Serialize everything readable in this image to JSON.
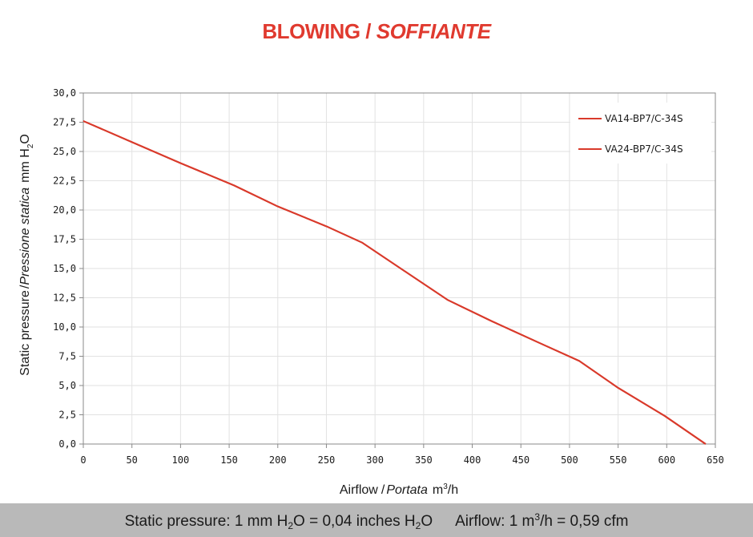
{
  "chart_data": {
    "type": "line",
    "title_part1": "BLOWING",
    "title_sep": " / ",
    "title_part2": "SOFFIANTE",
    "xlabel_main": "Airflow",
    "xlabel_it": "Portata",
    "xlabel_unit_a": "m",
    "xlabel_unit_sup": "3",
    "xlabel_unit_b": "/h",
    "ylabel_main": "Static pressure",
    "ylabel_it": "Pressione statica",
    "ylabel_unit_a": "mm  H",
    "ylabel_unit_sub": "2",
    "ylabel_unit_b": "O",
    "xlim": [
      0,
      650
    ],
    "ylim": [
      0,
      30
    ],
    "x_ticks": [
      0,
      50,
      100,
      150,
      200,
      250,
      300,
      350,
      400,
      450,
      500,
      550,
      600,
      650
    ],
    "y_ticks": [
      "0,0",
      "2,5",
      "5,0",
      "7,5",
      "10,0",
      "12,5",
      "15,0",
      "17,5",
      "20,0",
      "22,5",
      "25,0",
      "27,5",
      "30,0"
    ],
    "grid": true,
    "legend_position": "top-right",
    "series": [
      {
        "name": "VA14-BP7/C-34S",
        "color": "#d93a2b",
        "x": [
          0,
          50,
          100,
          155,
          200,
          250,
          287,
          330,
          375,
          420,
          470,
          510,
          550,
          598,
          640
        ],
        "y": [
          27.6,
          25.8,
          24.0,
          22.1,
          20.3,
          18.6,
          17.2,
          14.8,
          12.3,
          10.5,
          8.6,
          7.1,
          4.8,
          2.4,
          0.0
        ]
      },
      {
        "name": "VA24-BP7/C-34S",
        "color": "#d93a2b",
        "x": [
          0,
          50,
          100,
          155,
          200,
          250,
          287,
          330,
          375,
          420,
          470,
          510,
          550,
          598,
          640
        ],
        "y": [
          27.6,
          25.8,
          24.0,
          22.1,
          20.3,
          18.6,
          17.2,
          14.8,
          12.3,
          10.5,
          8.6,
          7.1,
          4.8,
          2.4,
          0.0
        ]
      }
    ]
  },
  "footer": {
    "sp_label": "Static pressure: 1 mm H",
    "sp_sub1": "2",
    "sp_mid": "O = 0,04 inches H",
    "sp_sub2": "2",
    "sp_end": "O",
    "af_label": "Airflow: 1 m",
    "af_sup": "3",
    "af_end": "/h = 0,59 cfm"
  }
}
